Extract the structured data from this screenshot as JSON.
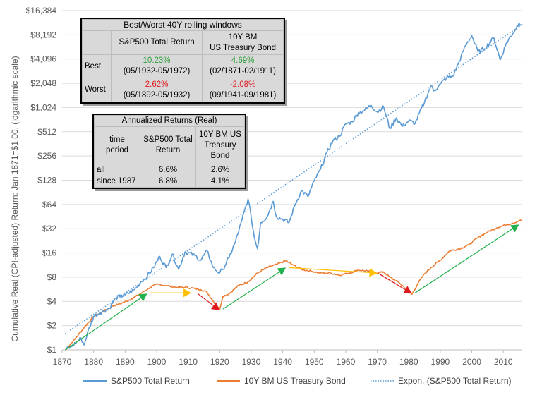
{
  "chart_data": {
    "type": "line",
    "title": "",
    "xlabel": "",
    "ylabel": "Cumulative Real (CPI-adjusted) Return: Jan 1871=$1.00. (logarithmic scale)",
    "yscale": "log2",
    "xlim": [
      1870,
      2016
    ],
    "ylim": [
      1,
      16384
    ],
    "x_ticks": [
      "1870",
      "1880",
      "1890",
      "1900",
      "1910",
      "1920",
      "1930",
      "1940",
      "1950",
      "1960",
      "1970",
      "1980",
      "1990",
      "2000",
      "2010"
    ],
    "y_ticks": [
      "$1",
      "$2",
      "$4",
      "$8",
      "$16",
      "$32",
      "$64",
      "$128",
      "$256",
      "$512",
      "$1,024",
      "$2,048",
      "$4,096",
      "$8,192",
      "$16,384"
    ],
    "series": [
      {
        "name": "S&P500 Total Return",
        "color": "#5b9bd5",
        "style": "solid",
        "points": [
          [
            1871,
            1.0
          ],
          [
            1873,
            1.1
          ],
          [
            1876,
            1.4
          ],
          [
            1877,
            1.15
          ],
          [
            1878,
            1.6
          ],
          [
            1880,
            2.6
          ],
          [
            1882,
            2.9
          ],
          [
            1885,
            3.3
          ],
          [
            1887,
            4.4
          ],
          [
            1890,
            4.8
          ],
          [
            1893,
            5.6
          ],
          [
            1895,
            7.0
          ],
          [
            1897,
            8.2
          ],
          [
            1899,
            10.5
          ],
          [
            1901,
            14.5
          ],
          [
            1903,
            10.5
          ],
          [
            1905,
            15.5
          ],
          [
            1907,
            10.0
          ],
          [
            1909,
            16.5
          ],
          [
            1912,
            15.0
          ],
          [
            1914,
            13.0
          ],
          [
            1916,
            17.0
          ],
          [
            1918,
            10.5
          ],
          [
            1920,
            9.0
          ],
          [
            1921,
            10.0
          ],
          [
            1923,
            14.0
          ],
          [
            1925,
            22.0
          ],
          [
            1927,
            40.0
          ],
          [
            1929,
            75.0
          ],
          [
            1930,
            45.0
          ],
          [
            1931,
            25.0
          ],
          [
            1932,
            18.0
          ],
          [
            1933,
            38.0
          ],
          [
            1935,
            45.0
          ],
          [
            1937,
            70.0
          ],
          [
            1938,
            45.0
          ],
          [
            1940,
            42.0
          ],
          [
            1942,
            38.0
          ],
          [
            1944,
            65.0
          ],
          [
            1946,
            95.0
          ],
          [
            1948,
            80.0
          ],
          [
            1950,
            125.0
          ],
          [
            1952,
            175.0
          ],
          [
            1954,
            280.0
          ],
          [
            1956,
            400.0
          ],
          [
            1958,
            450.0
          ],
          [
            1960,
            640.0
          ],
          [
            1962,
            680.0
          ],
          [
            1964,
            880.0
          ],
          [
            1966,
            950.0
          ],
          [
            1968,
            1100.0
          ],
          [
            1970,
            900.0
          ],
          [
            1972,
            1050.0
          ],
          [
            1974,
            560.0
          ],
          [
            1976,
            760.0
          ],
          [
            1978,
            600.0
          ],
          [
            1980,
            700.0
          ],
          [
            1982,
            650.0
          ],
          [
            1985,
            1200.0
          ],
          [
            1987,
            1900.0
          ],
          [
            1988,
            1650.0
          ],
          [
            1990,
            2000.0
          ],
          [
            1992,
            2400.0
          ],
          [
            1994,
            2500.0
          ],
          [
            1996,
            3800.0
          ],
          [
            1998,
            6000.0
          ],
          [
            2000,
            8000.0
          ],
          [
            2002,
            5000.0
          ],
          [
            2004,
            5500.0
          ],
          [
            2007,
            7500.0
          ],
          [
            2009,
            4000.0
          ],
          [
            2011,
            6500.0
          ],
          [
            2013,
            8500.0
          ],
          [
            2015,
            11500.0
          ],
          [
            2016,
            11200.0
          ]
        ]
      },
      {
        "name": "10Y BM US Treasury Bond",
        "color": "#ed7d31",
        "style": "solid",
        "points": [
          [
            1871,
            1.0
          ],
          [
            1874,
            1.35
          ],
          [
            1877,
            1.9
          ],
          [
            1880,
            2.6
          ],
          [
            1883,
            3.0
          ],
          [
            1886,
            3.5
          ],
          [
            1889,
            3.8
          ],
          [
            1892,
            4.3
          ],
          [
            1895,
            5.0
          ],
          [
            1898,
            6.0
          ],
          [
            1900,
            6.5
          ],
          [
            1903,
            6.3
          ],
          [
            1906,
            6.0
          ],
          [
            1909,
            6.0
          ],
          [
            1912,
            5.8
          ],
          [
            1914,
            5.6
          ],
          [
            1916,
            5.2
          ],
          [
            1918,
            4.0
          ],
          [
            1920,
            3.2
          ],
          [
            1921,
            4.6
          ],
          [
            1923,
            5.0
          ],
          [
            1926,
            6.3
          ],
          [
            1929,
            7.0
          ],
          [
            1932,
            9.0
          ],
          [
            1935,
            10.5
          ],
          [
            1938,
            11.5
          ],
          [
            1941,
            12.8
          ],
          [
            1943,
            11.5
          ],
          [
            1946,
            10.0
          ],
          [
            1949,
            9.5
          ],
          [
            1952,
            9.0
          ],
          [
            1955,
            9.0
          ],
          [
            1958,
            8.5
          ],
          [
            1961,
            9.0
          ],
          [
            1964,
            9.8
          ],
          [
            1967,
            9.5
          ],
          [
            1969,
            9.0
          ],
          [
            1970,
            9.0
          ],
          [
            1972,
            9.3
          ],
          [
            1974,
            8.0
          ],
          [
            1977,
            6.8
          ],
          [
            1979,
            5.8
          ],
          [
            1981,
            4.9
          ],
          [
            1983,
            6.8
          ],
          [
            1985,
            8.8
          ],
          [
            1987,
            10.5
          ],
          [
            1990,
            13.0
          ],
          [
            1993,
            17.0
          ],
          [
            1996,
            18.0
          ],
          [
            1999,
            20.0
          ],
          [
            2002,
            25.0
          ],
          [
            2005,
            29.0
          ],
          [
            2008,
            33.0
          ],
          [
            2011,
            36.0
          ],
          [
            2013,
            37.5
          ],
          [
            2015,
            40.0
          ],
          [
            2016,
            41.0
          ]
        ]
      },
      {
        "name": "Expon. (S&P500 Total Return)",
        "color": "#5b9bd5",
        "style": "dotted",
        "points": [
          [
            1871,
            1.6
          ],
          [
            2016,
            11000.0
          ]
        ]
      }
    ],
    "annotations": [
      {
        "type": "arrow",
        "color": "#22b14c",
        "from": [
          1871,
          1.0
        ],
        "to": [
          1897,
          5.0
        ]
      },
      {
        "type": "arrow",
        "color": "#ffc000",
        "from": [
          1898,
          5.1
        ],
        "to": [
          1911,
          5.1
        ]
      },
      {
        "type": "arrow",
        "color": "#e0191e",
        "from": [
          1913,
          5.0
        ],
        "to": [
          1920,
          3.1
        ]
      },
      {
        "type": "arrow",
        "color": "#22b14c",
        "from": [
          1921,
          3.2
        ],
        "to": [
          1941,
          10.5
        ]
      },
      {
        "type": "arrow",
        "color": "#ffc000",
        "from": [
          1942,
          10.5
        ],
        "to": [
          1970,
          9.0
        ]
      },
      {
        "type": "arrow",
        "color": "#e0191e",
        "from": [
          1971,
          8.6
        ],
        "to": [
          1981,
          5.0
        ]
      },
      {
        "type": "arrow",
        "color": "#22b14c",
        "from": [
          1982,
          5.1
        ],
        "to": [
          2015,
          36.0
        ]
      }
    ]
  },
  "table_rolling": {
    "title": "Best/Worst 40Y rolling windows",
    "col1": "S&P500 Total Return",
    "col2_line1": "10Y BM",
    "col2_line2": "US Treasury Bond",
    "best_label": "Best",
    "best_sp_value": "10.23%",
    "best_sp_period": "(05/1932-05/1972)",
    "best_bond_value": "4.69%",
    "best_bond_period": "(02/1871-02/1911)",
    "worst_label": "Worst",
    "worst_sp_value": "2.62%",
    "worst_sp_period": "(05/1892-05/1932)",
    "worst_bond_value": "-2.08%",
    "worst_bond_period": "(09/1941-09/1981)"
  },
  "table_annual": {
    "title": "Annualized Returns (Real)",
    "h0_line1": "time",
    "h0_line2": "period",
    "h1_line1": "S&P500 Total",
    "h1_line2": "Return",
    "h2_line1": "10Y BM US",
    "h2_line2": "Treasury",
    "h2_line3": "Bond",
    "r1_label": "all",
    "r1_sp": "6.6%",
    "r1_bond": "2.6%",
    "r2_label": "since 1987",
    "r2_sp": "6.8%",
    "r2_bond": "4.1%"
  }
}
